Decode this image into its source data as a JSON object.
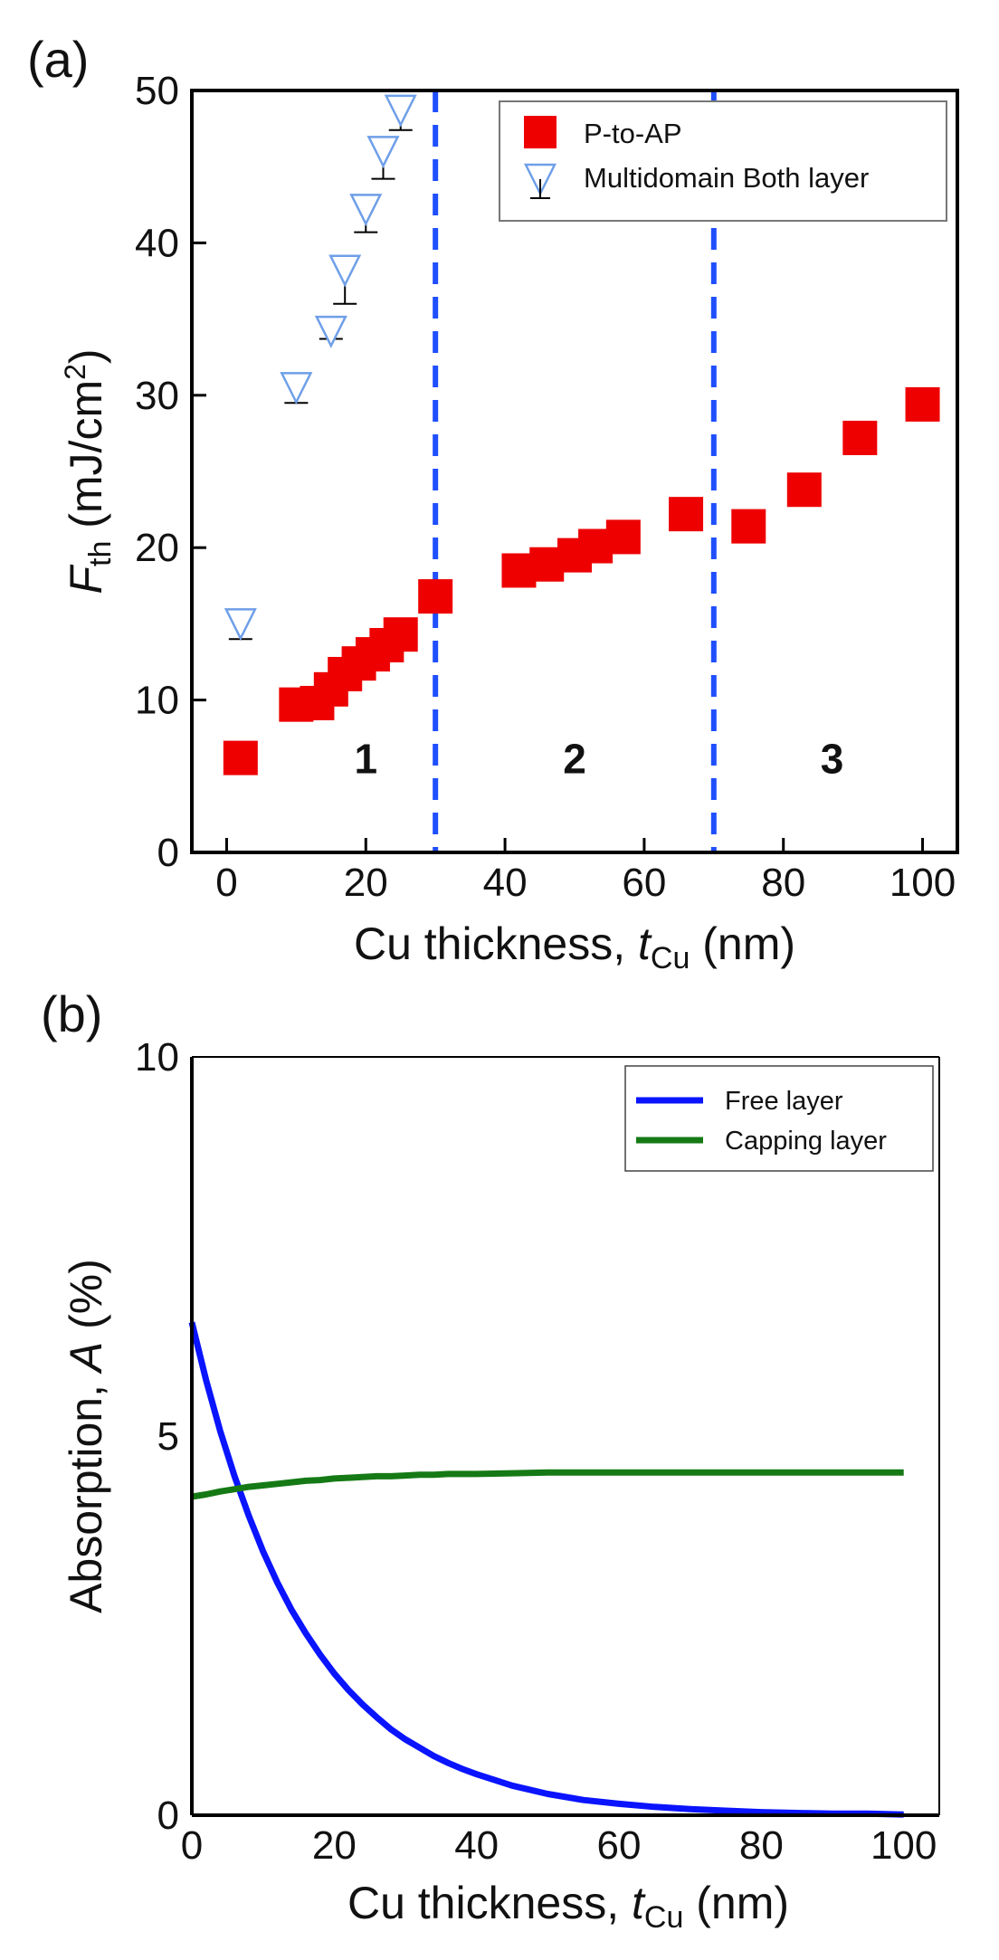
{
  "chart_data": [
    {
      "panel_label": "(a)",
      "type": "scatter",
      "xlabel_prefix": "Cu thickness, ",
      "xlabel_symbol": "t",
      "xlabel_subscript": "Cu",
      "xlabel_suffix": " (nm)",
      "ylabel_symbol": "F",
      "ylabel_subscript": "th",
      "ylabel_unit_prefix": " (mJ/cm",
      "ylabel_unit_sup": "2",
      "ylabel_unit_suffix": ")",
      "xlim": [
        -5,
        105
      ],
      "ylim": [
        0,
        50
      ],
      "xticks": [
        0,
        20,
        40,
        60,
        80,
        100
      ],
      "yticks": [
        0,
        10,
        20,
        30,
        40,
        50
      ],
      "grid": false,
      "legend_position": "top-right",
      "vlines": [
        {
          "x": 30,
          "color": "#1f4fff",
          "style": "dashed"
        },
        {
          "x": 70,
          "color": "#1f4fff",
          "style": "dashed"
        }
      ],
      "region_labels": [
        {
          "text": "1",
          "x": 20,
          "y": 5.2
        },
        {
          "text": "2",
          "x": 50,
          "y": 5.2
        },
        {
          "text": "3",
          "x": 87,
          "y": 5.2
        }
      ],
      "series": [
        {
          "name": "P-to-AP",
          "marker": "square",
          "color": "#ee0000",
          "x": [
            2,
            10,
            13,
            15,
            17,
            19,
            21,
            23,
            25,
            30,
            42,
            46,
            50,
            53,
            57,
            66,
            75,
            83,
            91,
            100
          ],
          "y": [
            6.2,
            9.7,
            9.8,
            10.7,
            11.7,
            12.4,
            13.0,
            13.6,
            14.3,
            16.8,
            18.5,
            18.9,
            19.5,
            20.1,
            20.7,
            22.2,
            21.4,
            23.8,
            27.2,
            29.4
          ]
        },
        {
          "name": "Multidomain Both layer",
          "marker": "triangle-down-open",
          "color": "#6f9fe8",
          "x": [
            2,
            10,
            15,
            17,
            20,
            22.5,
            25
          ],
          "y": [
            15.0,
            30.5,
            34.2,
            38.2,
            42.2,
            46.0,
            48.7
          ],
          "yerr": [
            1.0,
            1.0,
            0.5,
            2.2,
            1.5,
            1.8,
            1.3
          ]
        }
      ]
    },
    {
      "panel_label": "(b)",
      "type": "line",
      "xlabel_prefix": "Cu thickness, ",
      "xlabel_symbol": "t",
      "xlabel_subscript": "Cu",
      "xlabel_suffix": " (nm)",
      "ylabel_prefix": "Absorption, ",
      "ylabel_symbol": "A",
      "ylabel_suffix": " (%)",
      "xlim": [
        0,
        105
      ],
      "ylim": [
        0,
        10
      ],
      "xticks": [
        0,
        20,
        40,
        60,
        80,
        100
      ],
      "yticks": [
        0,
        5,
        10
      ],
      "grid": false,
      "legend_position": "top-right",
      "series": [
        {
          "name": "Free layer",
          "color": "#0a14ff",
          "x": [
            0,
            2,
            4,
            6,
            8,
            10,
            12,
            14,
            16,
            18,
            20,
            22,
            24,
            26,
            28,
            30,
            32,
            34,
            36,
            38,
            40,
            45,
            50,
            55,
            60,
            65,
            70,
            75,
            80,
            85,
            90,
            95,
            100
          ],
          "y": [
            6.5,
            5.74,
            5.06,
            4.47,
            3.95,
            3.48,
            3.07,
            2.71,
            2.4,
            2.12,
            1.87,
            1.65,
            1.46,
            1.29,
            1.13,
            1.0,
            0.89,
            0.78,
            0.69,
            0.61,
            0.54,
            0.39,
            0.28,
            0.2,
            0.15,
            0.11,
            0.08,
            0.06,
            0.04,
            0.03,
            0.02,
            0.02,
            0.01
          ]
        },
        {
          "name": "Capping layer",
          "color": "#157a15",
          "x": [
            0,
            2,
            4,
            6,
            8,
            10,
            12,
            14,
            16,
            18,
            20,
            22,
            24,
            26,
            28,
            30,
            32,
            34,
            36,
            38,
            40,
            45,
            50,
            55,
            60,
            65,
            70,
            75,
            80,
            85,
            90,
            95,
            100
          ],
          "y": [
            4.2,
            4.23,
            4.27,
            4.3,
            4.33,
            4.35,
            4.37,
            4.39,
            4.41,
            4.42,
            4.44,
            4.45,
            4.46,
            4.47,
            4.47,
            4.48,
            4.49,
            4.49,
            4.5,
            4.5,
            4.5,
            4.51,
            4.52,
            4.52,
            4.52,
            4.52,
            4.52,
            4.52,
            4.52,
            4.52,
            4.52,
            4.52,
            4.52
          ]
        }
      ]
    }
  ]
}
